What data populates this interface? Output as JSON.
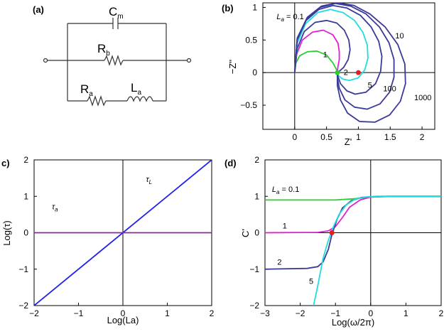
{
  "panels": {
    "a": {
      "label": "(a)"
    },
    "b": {
      "label": "(b)"
    },
    "c": {
      "label": "c)"
    },
    "d": {
      "label": "(d)"
    }
  },
  "circuit": {
    "capacitor_label": "C",
    "capacitor_sub": "m",
    "rb_label": "R",
    "rb_sub": "b",
    "ra_label": "R",
    "ra_sub": "a",
    "la_label": "L",
    "la_sub": "a"
  },
  "colors": {
    "La_0.1": "#2ecc2e",
    "La_1": "#e020d0",
    "La_2": "#3a3a9a",
    "La_5": "#20dde0",
    "La_10": "#3a3a9a",
    "La_100": "#3a3a9a",
    "La_1000": "#3a3a9a",
    "tau_L": "#2020ee",
    "tau_a": "#8a2a9a",
    "marker": "#e02020"
  },
  "chart_data": [
    {
      "id": "b",
      "type": "line",
      "title": "",
      "xlabel": "Z'",
      "ylabel": "−Z''",
      "xlim": [
        -0.5,
        2.2
      ],
      "ylim": [
        -0.87,
        1.07
      ],
      "xticks": [
        "0",
        "0.5",
        "1",
        "1.5",
        "2"
      ],
      "xtick_values": [
        0,
        0.5,
        1,
        1.5,
        2
      ],
      "yticks": [
        "1",
        "0.5",
        "0",
        "−0.5"
      ],
      "ytick_values": [
        1,
        0.5,
        0,
        -0.5
      ],
      "series": [
        {
          "name": "La = 0.1",
          "color": "#2ecc2e",
          "points": [
            [
              0,
              0
            ],
            [
              0.02,
              0.15
            ],
            [
              0.08,
              0.26
            ],
            [
              0.2,
              0.32
            ],
            [
              0.35,
              0.33
            ],
            [
              0.5,
              0.27
            ],
            [
              0.6,
              0.15
            ],
            [
              0.67,
              0.02
            ]
          ]
        },
        {
          "name": "1",
          "color": "#e020d0",
          "points": [
            [
              0,
              0
            ],
            [
              0.03,
              0.28
            ],
            [
              0.12,
              0.5
            ],
            [
              0.28,
              0.62
            ],
            [
              0.45,
              0.65
            ],
            [
              0.6,
              0.58
            ],
            [
              0.68,
              0.45
            ],
            [
              0.7,
              0.32
            ],
            [
              0.7,
              0.2
            ],
            [
              0.68,
              0.1
            ],
            [
              0.67,
              0.02
            ]
          ]
        },
        {
          "name": "2",
          "color": "#3a3a9a",
          "points": [
            [
              0,
              0
            ],
            [
              0.04,
              0.37
            ],
            [
              0.15,
              0.63
            ],
            [
              0.32,
              0.77
            ],
            [
              0.5,
              0.8
            ],
            [
              0.66,
              0.76
            ],
            [
              0.78,
              0.65
            ],
            [
              0.85,
              0.5
            ],
            [
              0.87,
              0.35
            ],
            [
              0.84,
              0.2
            ],
            [
              0.77,
              0.08
            ],
            [
              0.7,
              0.02
            ],
            [
              0.67,
              0
            ]
          ]
        },
        {
          "name": "5",
          "color": "#20dde0",
          "points": [
            [
              0,
              0
            ],
            [
              0.04,
              0.45
            ],
            [
              0.17,
              0.75
            ],
            [
              0.36,
              0.92
            ],
            [
              0.56,
              0.97
            ],
            [
              0.76,
              0.92
            ],
            [
              0.94,
              0.8
            ],
            [
              1.07,
              0.62
            ],
            [
              1.14,
              0.42
            ],
            [
              1.15,
              0.22
            ],
            [
              1.1,
              0.04
            ],
            [
              1.0,
              -0.08
            ],
            [
              0.86,
              -0.12
            ],
            [
              0.76,
              -0.1
            ],
            [
              0.69,
              -0.05
            ],
            [
              0.67,
              0
            ]
          ]
        },
        {
          "name": "10",
          "color": "#3a3a9a",
          "points": [
            [
              0,
              0
            ],
            [
              0.04,
              0.5
            ],
            [
              0.18,
              0.8
            ],
            [
              0.38,
              0.97
            ],
            [
              0.6,
              1.03
            ],
            [
              0.82,
              0.99
            ],
            [
              1.03,
              0.88
            ],
            [
              1.2,
              0.7
            ],
            [
              1.32,
              0.48
            ],
            [
              1.37,
              0.25
            ],
            [
              1.35,
              0.02
            ],
            [
              1.27,
              -0.17
            ],
            [
              1.12,
              -0.3
            ],
            [
              0.95,
              -0.33
            ],
            [
              0.82,
              -0.28
            ],
            [
              0.72,
              -0.17
            ],
            [
              0.68,
              -0.06
            ],
            [
              0.67,
              0
            ]
          ]
        },
        {
          "name": "100",
          "color": "#3a3a9a",
          "points": [
            [
              0,
              0
            ],
            [
              0.04,
              0.52
            ],
            [
              0.19,
              0.83
            ],
            [
              0.4,
              1.0
            ],
            [
              0.64,
              1.06
            ],
            [
              0.88,
              1.02
            ],
            [
              1.12,
              0.9
            ],
            [
              1.33,
              0.7
            ],
            [
              1.48,
              0.46
            ],
            [
              1.56,
              0.2
            ],
            [
              1.56,
              -0.07
            ],
            [
              1.49,
              -0.3
            ],
            [
              1.34,
              -0.48
            ],
            [
              1.14,
              -0.56
            ],
            [
              0.94,
              -0.53
            ],
            [
              0.79,
              -0.42
            ],
            [
              0.7,
              -0.24
            ],
            [
              0.67,
              -0.08
            ],
            [
              0.67,
              0
            ]
          ]
        },
        {
          "name": "1000",
          "color": "#3a3a9a",
          "points": [
            [
              0,
              0
            ],
            [
              0.04,
              0.53
            ],
            [
              0.2,
              0.85
            ],
            [
              0.42,
              1.02
            ],
            [
              0.67,
              1.07
            ],
            [
              0.93,
              1.03
            ],
            [
              1.18,
              0.9
            ],
            [
              1.42,
              0.7
            ],
            [
              1.62,
              0.43
            ],
            [
              1.73,
              0.13
            ],
            [
              1.74,
              -0.17
            ],
            [
              1.66,
              -0.44
            ],
            [
              1.49,
              -0.65
            ],
            [
              1.26,
              -0.76
            ],
            [
              1.02,
              -0.75
            ],
            [
              0.83,
              -0.62
            ],
            [
              0.72,
              -0.42
            ],
            [
              0.67,
              -0.2
            ],
            [
              0.67,
              0
            ]
          ]
        }
      ],
      "series_labels": [
        {
          "text": "L",
          "sub": "a",
          "suffix": " = 0.1",
          "x": 0.08,
          "y": 0.13
        },
        {
          "text": "1",
          "x": 0.35,
          "y": 0.43
        },
        {
          "text": "2",
          "x": 0.47,
          "y": 0.57
        },
        {
          "text": "5",
          "x": 0.61,
          "y": 0.67
        },
        {
          "text": "10",
          "x": 0.77,
          "y": 0.28
        },
        {
          "text": "100",
          "x": 0.7,
          "y": 0.7
        },
        {
          "text": "1000",
          "x": 0.88,
          "y": 0.77
        }
      ],
      "markers": [
        {
          "x": 1.0,
          "y": 0.0,
          "color": "#e02020"
        },
        {
          "x": 0.67,
          "y": 0.0,
          "color": "#2ecc2e"
        }
      ]
    },
    {
      "id": "c",
      "type": "line",
      "title": "",
      "xlabel": "Log(La)",
      "ylabel": "Log(τ)",
      "xlim": [
        -2,
        2
      ],
      "ylim": [
        -2,
        2
      ],
      "xticks": [
        "−2",
        "−1",
        "0",
        "1",
        "2"
      ],
      "xtick_values": [
        -2,
        -1,
        0,
        1,
        2
      ],
      "yticks": [
        "2",
        "1",
        "0",
        "−1",
        "−2"
      ],
      "ytick_values": [
        2,
        1,
        0,
        -1,
        -2
      ],
      "series": [
        {
          "name": "τL",
          "color": "#2020ee",
          "points": [
            [
              -2,
              -2
            ],
            [
              2,
              2
            ]
          ]
        },
        {
          "name": "τa",
          "color": "#8a2a9a",
          "points": [
            [
              -2,
              0
            ],
            [
              2,
              0
            ]
          ]
        }
      ],
      "series_labels": [
        {
          "text": "τ",
          "sub": "L",
          "x": 0.63,
          "y": 0.15
        },
        {
          "text": "τ",
          "sub": "a",
          "x": 0.1,
          "y": 0.34
        }
      ]
    },
    {
      "id": "d",
      "type": "line",
      "title": "",
      "xlabel": "Log(ω/2π)",
      "ylabel": "C'",
      "xlim": [
        -3,
        2
      ],
      "ylim": [
        -2,
        2
      ],
      "xticks": [
        "−3",
        "−2",
        "−1",
        "0",
        "1",
        "2"
      ],
      "xtick_values": [
        -3,
        -2,
        -1,
        0,
        1,
        2
      ],
      "yticks": [
        "2",
        "1",
        "0",
        "−1",
        "−2"
      ],
      "ytick_values": [
        2,
        1,
        0,
        -1,
        -2
      ],
      "series": [
        {
          "name": "La = 0.1",
          "color": "#2ecc2e",
          "points": [
            [
              -3,
              0.9
            ],
            [
              -1,
              0.9
            ],
            [
              -0.5,
              0.93
            ],
            [
              0,
              0.98
            ],
            [
              0.5,
              1.0
            ],
            [
              2,
              1.0
            ]
          ]
        },
        {
          "name": "1",
          "color": "#e020d0",
          "points": [
            [
              -3,
              0
            ],
            [
              -1.5,
              0.01
            ],
            [
              -1.2,
              0.05
            ],
            [
              -1.0,
              0.17
            ],
            [
              -0.8,
              0.42
            ],
            [
              -0.6,
              0.7
            ],
            [
              -0.3,
              0.9
            ],
            [
              0,
              0.98
            ],
            [
              0.5,
              1.0
            ],
            [
              2,
              1.0
            ]
          ]
        },
        {
          "name": "2",
          "color": "#3a3a9a",
          "points": [
            [
              -3,
              -1
            ],
            [
              -1.8,
              -0.98
            ],
            [
              -1.5,
              -0.93
            ],
            [
              -1.35,
              -0.8
            ],
            [
              -1.2,
              -0.45
            ],
            [
              -1.1,
              -0.05
            ],
            [
              -0.95,
              0.38
            ],
            [
              -0.8,
              0.68
            ],
            [
              -0.55,
              0.88
            ],
            [
              -0.25,
              0.97
            ],
            [
              0.2,
              1.0
            ],
            [
              2,
              1.0
            ]
          ]
        },
        {
          "name": "5",
          "color": "#20dde0",
          "points": [
            [
              -1.62,
              -2
            ],
            [
              -1.5,
              -1.45
            ],
            [
              -1.35,
              -0.7
            ],
            [
              -1.2,
              -0.2
            ],
            [
              -1.05,
              0.18
            ],
            [
              -0.9,
              0.5
            ],
            [
              -0.7,
              0.76
            ],
            [
              -0.45,
              0.92
            ],
            [
              -0.15,
              0.98
            ],
            [
              0.3,
              1.0
            ],
            [
              2,
              1.0
            ]
          ]
        }
      ],
      "series_labels": [
        {
          "text": "L",
          "sub": "a",
          "suffix": " = 0.1",
          "x": 0.04,
          "y": 0.22
        },
        {
          "text": "1",
          "x": 0.1,
          "y": 0.47
        },
        {
          "text": "2",
          "x": 0.07,
          "y": 0.72
        },
        {
          "text": "5",
          "x": 0.25,
          "y": 0.85
        }
      ],
      "markers": [
        {
          "x": -1.1,
          "y": 0.0,
          "color": "#e02020"
        }
      ]
    }
  ]
}
